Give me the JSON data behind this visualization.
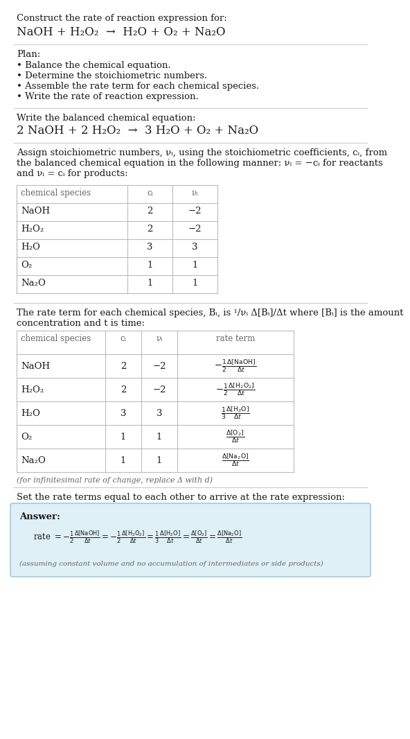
{
  "bg_color": "#ffffff",
  "text_color": "#1a1a1a",
  "gray": "#666666",
  "table_border": "#bbbbbb",
  "answer_bg": "#dff0f7",
  "answer_border": "#90c4d8",
  "s1_line1": "Construct the rate of reaction expression for:",
  "s1_line2_parts": [
    "NaOH + H",
    "2",
    "O",
    "2",
    "  →  H",
    "2",
    "O + O",
    "2",
    " + Na",
    "2",
    "O"
  ],
  "s2_title": "Plan:",
  "s2_bullets": [
    "• Balance the chemical equation.",
    "• Determine the stoichiometric numbers.",
    "• Assemble the rate term for each chemical species.",
    "• Write the rate of reaction expression."
  ],
  "s3_title": "Write the balanced chemical equation:",
  "s3_line2_parts": [
    "2 NaOH + 2 H",
    "2",
    "O",
    "2",
    "  →  3 H",
    "2",
    "O + O",
    "2",
    " + Na",
    "2",
    "O"
  ],
  "s4_intro": "Assign stoichiometric numbers, νᵢ, using the stoichiometric coefficients, cᵢ, from\nthe balanced chemical equation in the following manner: νᵢ = −cᵢ for reactants\nand νᵢ = cᵢ for products:",
  "t1_headers": [
    "chemical species",
    "cᵢ",
    "νᵢ"
  ],
  "t1_rows": [
    [
      "NaOH",
      "2",
      "−2"
    ],
    [
      "H₂O₂",
      "2",
      "−2"
    ],
    [
      "H₂O",
      "3",
      "3"
    ],
    [
      "O₂",
      "1",
      "1"
    ],
    [
      "Na₂O",
      "1",
      "1"
    ]
  ],
  "s5_intro1": "The rate term for each chemical species, Bᵢ, is ¹⁄νᵢ Δ[Bᵢ]/Δt where [Bᵢ] is the amount",
  "s5_intro2": "concentration and t is time:",
  "t2_headers": [
    "chemical species",
    "cᵢ",
    "νᵢ",
    "rate term"
  ],
  "t2_rows": [
    [
      "NaOH",
      "2",
      "−2",
      "−1⁄2 Δ[NaOH]/Δt"
    ],
    [
      "H₂O₂",
      "2",
      "−2",
      "−1⁄2 Δ[H₂O₂]/Δt"
    ],
    [
      "H₂O",
      "3",
      "3",
      "1⁄3 Δ[H₂O]/Δt"
    ],
    [
      "O₂",
      "1",
      "1",
      "Δ[O₂]/Δt"
    ],
    [
      "Na₂O",
      "1",
      "1",
      "Δ[Na₂O]/Δt"
    ]
  ],
  "s5_footer": "(for infinitesimal rate of change, replace Δ with d)",
  "s6_title": "Set the rate terms equal to each other to arrive at the rate expression:",
  "ans_label": "Answer:",
  "ans_eq": "rate = −1⁄2 Δ[NaOH]/Δt = −1⁄2 Δ[H₂O₂]/Δt = 1⁄3 Δ[H₂O]/Δt = Δ[O₂]/Δt = Δ[Na₂O]/Δt",
  "ans_footer": "(assuming constant volume and no accumulation of intermediates or side products)"
}
